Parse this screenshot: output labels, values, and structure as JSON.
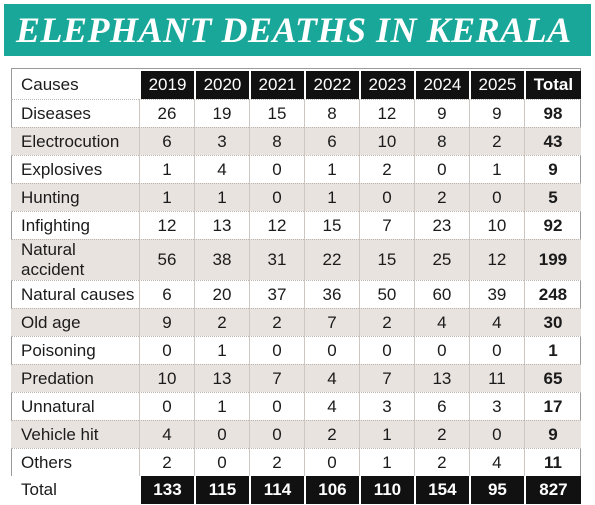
{
  "title": "ELEPHANT DEATHS IN KERALA",
  "header": {
    "causes_label": "Causes",
    "years": [
      "2019",
      "2020",
      "2021",
      "2022",
      "2023",
      "2024",
      "2025"
    ],
    "total_label": "Total"
  },
  "rows": [
    {
      "cause": "Diseases",
      "values": [
        "26",
        "19",
        "15",
        "8",
        "12",
        "9",
        "9"
      ],
      "total": "98"
    },
    {
      "cause": "Electrocution",
      "values": [
        "6",
        "3",
        "8",
        "6",
        "10",
        "8",
        "2"
      ],
      "total": "43"
    },
    {
      "cause": "Explosives",
      "values": [
        "1",
        "4",
        "0",
        "1",
        "2",
        "0",
        "1"
      ],
      "total": "9"
    },
    {
      "cause": "Hunting",
      "values": [
        "1",
        "1",
        "0",
        "1",
        "0",
        "2",
        "0"
      ],
      "total": "5"
    },
    {
      "cause": "Infighting",
      "values": [
        "12",
        "13",
        "12",
        "15",
        "7",
        "23",
        "10"
      ],
      "total": "92"
    },
    {
      "cause": "Natural accident",
      "values": [
        "56",
        "38",
        "31",
        "22",
        "15",
        "25",
        "12"
      ],
      "total": "199"
    },
    {
      "cause": "Natural causes",
      "values": [
        "6",
        "20",
        "37",
        "36",
        "50",
        "60",
        "39"
      ],
      "total": "248"
    },
    {
      "cause": "Old age",
      "values": [
        "9",
        "2",
        "2",
        "7",
        "2",
        "4",
        "4"
      ],
      "total": "30"
    },
    {
      "cause": "Poisoning",
      "values": [
        "0",
        "1",
        "0",
        "0",
        "0",
        "0",
        "0"
      ],
      "total": "1"
    },
    {
      "cause": "Predation",
      "values": [
        "10",
        "13",
        "7",
        "4",
        "7",
        "13",
        "11"
      ],
      "total": "65"
    },
    {
      "cause": "Unnatural",
      "values": [
        "0",
        "1",
        "0",
        "4",
        "3",
        "6",
        "3"
      ],
      "total": "17"
    },
    {
      "cause": "Vehicle hit",
      "values": [
        "4",
        "0",
        "0",
        "2",
        "1",
        "2",
        "0"
      ],
      "total": "9"
    },
    {
      "cause": "Others",
      "values": [
        "2",
        "0",
        "2",
        "0",
        "1",
        "2",
        "4"
      ],
      "total": "11"
    }
  ],
  "totals": {
    "label": "Total",
    "values": [
      "133",
      "115",
      "114",
      "106",
      "110",
      "154",
      "95"
    ],
    "grand_total": "827"
  },
  "colors": {
    "banner": "#19a79a",
    "header_fill": "#111111",
    "alt_row": "#e9e3e0"
  }
}
